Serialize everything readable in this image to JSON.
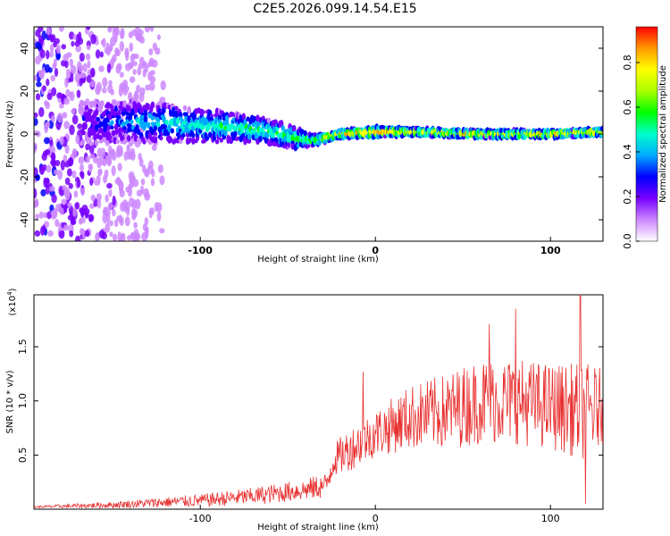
{
  "title": "C2E5.2026.099.14.54.E15",
  "chart_data": [
    {
      "type": "heatmap",
      "title": "C2E5.2026.099.14.54.E15",
      "xlabel": "Height of straight line (km)",
      "ylabel": "Frequency (Hz)",
      "xlim": [
        -195,
        130
      ],
      "ylim": [
        -50,
        50
      ],
      "xticks": [
        -100,
        0,
        100
      ],
      "yticks": [
        -40,
        -20,
        0,
        20,
        40
      ],
      "colorbar": {
        "label": "Normalized spectral amplitude",
        "range": [
          0,
          0.96
        ],
        "ticks": [
          "0.0",
          "0.2",
          "0.4",
          "0.6",
          "0.8"
        ],
        "colors": [
          "#ffffff",
          "#cc88ff",
          "#7700ff",
          "#0000ff",
          "#00aaff",
          "#00ffcc",
          "#00ff00",
          "#aaff00",
          "#ffff00",
          "#ff9900",
          "#ff0000"
        ]
      },
      "ridge": {
        "x": [
          -165,
          -140,
          -120,
          -100,
          -80,
          -60,
          -45,
          -35,
          -20,
          0,
          20,
          60,
          100,
          130
        ],
        "center_hz": [
          5,
          6,
          5,
          4,
          3,
          1,
          -2,
          -3,
          0,
          1,
          1,
          0,
          0,
          1
        ],
        "width_hz": [
          12,
          12,
          11,
          10,
          8,
          7,
          6,
          3,
          2,
          3,
          2,
          2,
          2,
          2
        ],
        "peak_amplitude": [
          0.25,
          0.4,
          0.45,
          0.5,
          0.55,
          0.55,
          0.6,
          0.65,
          0.9,
          0.9,
          0.8,
          0.85,
          0.85,
          0.8
        ]
      },
      "background_noise_edge_km": [
        -195,
        -130
      ]
    },
    {
      "type": "line",
      "xlabel": "Height of straight line (km)",
      "ylabel": "SNR (10 * v/v)",
      "y_multiplier": "(x10^4)",
      "y_multiplier_base": "(x10",
      "y_multiplier_exp": "4",
      "xlim": [
        -195,
        130
      ],
      "ylim": [
        0,
        1.98
      ],
      "xticks": [
        -100,
        0,
        100
      ],
      "yticks": [
        0.5,
        1.0,
        1.5
      ],
      "line_color": "#e83030",
      "envelope": {
        "x": [
          -195,
          -150,
          -100,
          -70,
          -40,
          -28,
          -24,
          -15,
          0,
          20,
          40,
          60,
          80,
          100,
          120,
          130
        ],
        "mean": [
          0.02,
          0.04,
          0.08,
          0.12,
          0.18,
          0.22,
          0.45,
          0.55,
          0.7,
          0.85,
          0.9,
          1.0,
          1.0,
          0.95,
          0.9,
          0.95
        ],
        "amplitude": [
          0.01,
          0.03,
          0.06,
          0.08,
          0.1,
          0.12,
          0.15,
          0.2,
          0.22,
          0.3,
          0.35,
          0.4,
          0.4,
          0.4,
          0.45,
          0.35
        ]
      },
      "peaks": [
        {
          "x": -7,
          "y": 1.27
        },
        {
          "x": 117,
          "y": 1.98
        },
        {
          "x": 80,
          "y": 1.85
        },
        {
          "x": 65,
          "y": 1.71
        },
        {
          "x": 120,
          "y": 0.05
        }
      ]
    }
  ]
}
